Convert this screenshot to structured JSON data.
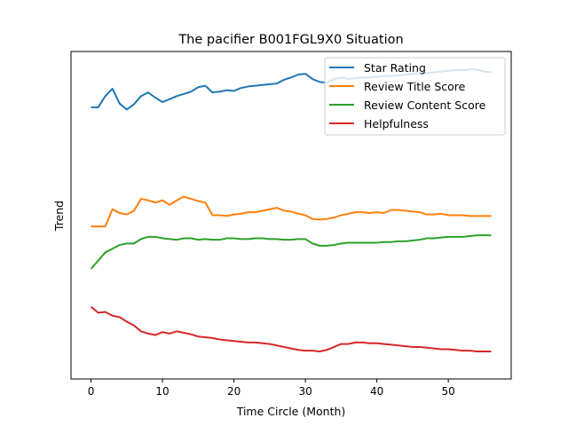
{
  "chart_data": {
    "type": "line",
    "title": "The pacifier B001FGL9X0 Situation",
    "xlabel": "Time Circle (Month)",
    "ylabel": "Trend",
    "xlim": [
      -2.8,
      58.8
    ],
    "ylim": [
      -0.21,
      4.19
    ],
    "xticks": [
      0,
      10,
      20,
      30,
      40,
      50
    ],
    "yticks_shown": false,
    "grid": false,
    "legend_position": "top-right",
    "colors": [
      "#1f77b4",
      "#ff7f0e",
      "#2ca02c",
      "#d62728"
    ],
    "x": [
      0,
      1,
      2,
      3,
      4,
      5,
      6,
      7,
      8,
      9,
      10,
      11,
      12,
      13,
      14,
      15,
      16,
      17,
      18,
      19,
      20,
      21,
      22,
      23,
      24,
      25,
      26,
      27,
      28,
      29,
      30,
      31,
      32,
      33,
      34,
      35,
      36,
      37,
      38,
      39,
      40,
      41,
      42,
      43,
      44,
      45,
      46,
      47,
      48,
      49,
      50,
      51,
      52,
      53,
      54,
      55,
      56
    ],
    "series": [
      {
        "name": "Star Rating",
        "values": [
          3.44,
          3.44,
          3.59,
          3.69,
          3.49,
          3.41,
          3.48,
          3.59,
          3.64,
          3.57,
          3.51,
          3.55,
          3.59,
          3.62,
          3.65,
          3.71,
          3.73,
          3.64,
          3.65,
          3.67,
          3.66,
          3.7,
          3.72,
          3.73,
          3.74,
          3.75,
          3.76,
          3.81,
          3.84,
          3.88,
          3.89,
          3.82,
          3.78,
          3.77,
          3.82,
          3.84,
          3.82,
          3.83,
          3.84,
          3.84,
          3.85,
          3.86,
          3.86,
          3.87,
          3.88,
          3.89,
          3.9,
          3.9,
          3.91,
          3.92,
          3.93,
          3.94,
          3.94,
          3.95,
          3.95,
          3.92,
          3.91
        ]
      },
      {
        "name": "Review Title Score",
        "values": [
          1.84,
          1.84,
          1.84,
          2.07,
          2.02,
          2.0,
          2.05,
          2.21,
          2.19,
          2.16,
          2.19,
          2.13,
          2.19,
          2.24,
          2.21,
          2.18,
          2.16,
          1.99,
          1.99,
          1.98,
          2.0,
          2.01,
          2.03,
          2.03,
          2.05,
          2.07,
          2.09,
          2.05,
          2.04,
          2.01,
          1.99,
          1.94,
          1.93,
          1.94,
          1.96,
          1.99,
          2.01,
          2.03,
          2.03,
          2.02,
          2.03,
          2.02,
          2.06,
          2.06,
          2.05,
          2.04,
          2.03,
          2.0,
          2.0,
          2.01,
          1.99,
          1.99,
          1.99,
          1.98,
          1.98,
          1.98,
          1.98
        ]
      },
      {
        "name": "Review Content Score",
        "values": [
          1.27,
          1.38,
          1.49,
          1.54,
          1.59,
          1.61,
          1.61,
          1.67,
          1.7,
          1.7,
          1.68,
          1.67,
          1.66,
          1.68,
          1.68,
          1.66,
          1.67,
          1.66,
          1.66,
          1.68,
          1.68,
          1.67,
          1.67,
          1.68,
          1.68,
          1.67,
          1.67,
          1.66,
          1.66,
          1.67,
          1.67,
          1.61,
          1.58,
          1.58,
          1.59,
          1.61,
          1.62,
          1.62,
          1.62,
          1.62,
          1.62,
          1.63,
          1.63,
          1.64,
          1.64,
          1.65,
          1.66,
          1.68,
          1.68,
          1.69,
          1.7,
          1.7,
          1.7,
          1.71,
          1.72,
          1.72,
          1.72
        ]
      },
      {
        "name": "Helpfulness",
        "values": [
          0.76,
          0.68,
          0.69,
          0.64,
          0.62,
          0.56,
          0.51,
          0.43,
          0.4,
          0.38,
          0.42,
          0.4,
          0.43,
          0.41,
          0.39,
          0.36,
          0.35,
          0.34,
          0.32,
          0.31,
          0.3,
          0.29,
          0.28,
          0.28,
          0.27,
          0.26,
          0.24,
          0.22,
          0.2,
          0.18,
          0.17,
          0.17,
          0.16,
          0.18,
          0.22,
          0.26,
          0.26,
          0.28,
          0.28,
          0.27,
          0.27,
          0.26,
          0.25,
          0.24,
          0.23,
          0.22,
          0.22,
          0.21,
          0.2,
          0.19,
          0.19,
          0.18,
          0.17,
          0.17,
          0.16,
          0.16,
          0.16
        ]
      }
    ]
  }
}
